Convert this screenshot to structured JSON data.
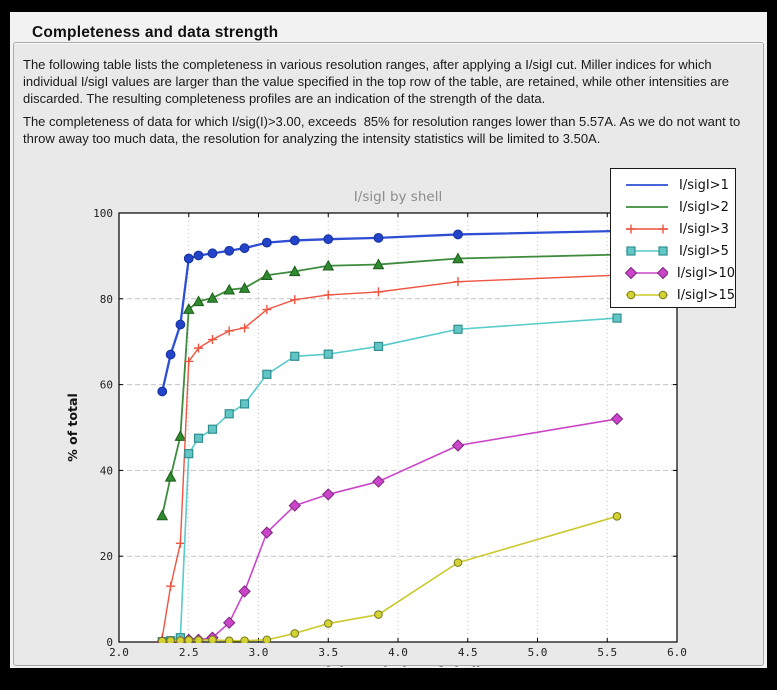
{
  "header": {
    "title": "Completeness and data strength"
  },
  "paragraphs": {
    "p1": "The following table lists the completeness in various resolution ranges, after applying a I/sigI cut. Miller indices for which individual I/sigI values are larger than the value specified in the top row of the table, are retained, while other intensities are discarded. The resulting completeness profiles are an indication of the strength of the data.",
    "p2": "The completeness of data for which I/sig(I)>3.00, exceeds  85% for resolution ranges lower than 5.57A. As we do not want to throw away too much data, the resolution for analyzing the intensity statistics will be limited to 3.50A."
  },
  "colors": {
    "frame": "#000000",
    "window_bg": "#f2f2f2",
    "panel_bg": "#e9e9e9",
    "plot_bg": "#ffffff",
    "grid": "#c3c3c3",
    "title_text": "#8c8c8c"
  },
  "chart_data": {
    "type": "line",
    "title": "I/sigI by shell",
    "xlabel": "High resolution of shell",
    "ylabel": "% of total",
    "xlim": [
      2.0,
      6.0
    ],
    "ylim": [
      0,
      100
    ],
    "grid": true,
    "legend_position": "upper right",
    "xticks": [
      2.0,
      2.5,
      3.0,
      3.5,
      4.0,
      4.5,
      5.0,
      5.5,
      6.0
    ],
    "xtick_labels": [
      "2.0",
      "2.5",
      "3.0",
      "3.5",
      "4.0",
      "4.5",
      "5.0",
      "5.5",
      "6.0"
    ],
    "yticks": [
      0,
      20,
      40,
      60,
      80,
      100
    ],
    "ytick_labels": [
      "0",
      "20",
      "40",
      "60",
      "80",
      "100"
    ],
    "x": [
      2.31,
      2.37,
      2.44,
      2.5,
      2.57,
      2.67,
      2.79,
      2.9,
      3.06,
      3.26,
      3.5,
      3.86,
      4.43,
      5.57
    ],
    "series": [
      {
        "name": "I/sigI>1",
        "color": "#2e4fd4",
        "lw": 2.3,
        "marker": "circle",
        "ms": 4.4,
        "mfill": "#2343c8",
        "medge": "#16309b",
        "legend_marker": "none",
        "values": [
          58.4,
          67.0,
          74.0,
          89.4,
          90.1,
          90.6,
          91.2,
          91.8,
          93.1,
          93.6,
          93.9,
          94.2,
          95.0,
          95.8
        ]
      },
      {
        "name": "I/sigI>2",
        "color": "#3d8b3d",
        "lw": 1.8,
        "marker": "triangle",
        "ms": 5,
        "mfill": "#2f8b2f",
        "medge": "#1d5c1d",
        "legend_marker": "none",
        "values": [
          29.5,
          38.5,
          48.0,
          77.6,
          79.4,
          80.2,
          82.1,
          82.5,
          85.5,
          86.4,
          87.7,
          88.0,
          89.4,
          90.3
        ]
      },
      {
        "name": "I/sigI>3",
        "color": "#ee5440",
        "lw": 1.4,
        "marker": "plus",
        "ms": 4.5,
        "mfill": "#ee5440",
        "medge": "#ee5440",
        "legend_marker": "plus",
        "values": [
          1.0,
          13.0,
          23.0,
          65.4,
          68.5,
          70.5,
          72.5,
          73.2,
          77.5,
          79.8,
          80.9,
          81.6,
          84.0,
          85.5
        ]
      },
      {
        "name": "I/sigI>5",
        "color": "#58cbcb",
        "lw": 1.6,
        "marker": "square",
        "ms": 4,
        "mfill": "#63c6c6",
        "medge": "#2f8f8f",
        "legend_marker": "square",
        "values": [
          0.0,
          0.3,
          1.0,
          43.9,
          47.5,
          49.6,
          53.2,
          55.5,
          62.4,
          66.6,
          67.1,
          68.9,
          72.9,
          75.5
        ]
      },
      {
        "name": "I/sigI>10",
        "color": "#cb45cb",
        "lw": 1.6,
        "marker": "diamond",
        "ms": 5.5,
        "mfill": "#cb45cb",
        "medge": "#7c257c",
        "legend_marker": "diamond",
        "values": [
          0.0,
          0.0,
          0.0,
          0.5,
          0.5,
          1.0,
          4.5,
          11.8,
          25.5,
          31.8,
          34.4,
          37.4,
          45.8,
          52.0
        ]
      },
      {
        "name": "I/sigI>15",
        "color": "#c9c92b",
        "lw": 1.6,
        "marker": "circle",
        "ms": 3.8,
        "mfill": "#d2d232",
        "medge": "#77771d",
        "legend_marker": "circle",
        "values": [
          0.2,
          0.3,
          0.3,
          0.4,
          0.4,
          0.5,
          0.3,
          0.3,
          0.5,
          2.0,
          4.3,
          6.4,
          18.5,
          29.3
        ]
      }
    ]
  }
}
